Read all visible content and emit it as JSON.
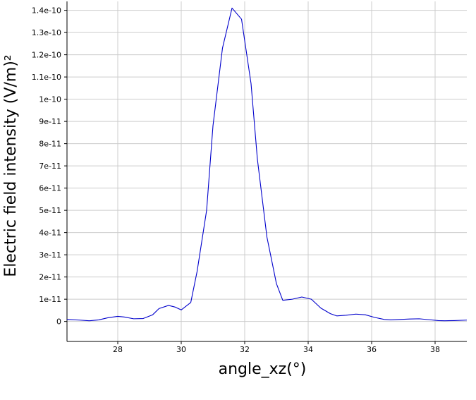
{
  "chart_data": {
    "type": "line",
    "title": "",
    "xlabel": "angle_xz(°)",
    "ylabel": "Electric field intensity (V/m)²",
    "xlim": [
      26.4,
      39.0
    ],
    "ylim": [
      -9e-12,
      1.44e-10
    ],
    "x_ticks": [
      28,
      30,
      32,
      34,
      36,
      38
    ],
    "x_tick_labels": [
      "28",
      "30",
      "32",
      "34",
      "36",
      "38"
    ],
    "y_ticks": [
      0,
      1e-11,
      2e-11,
      3e-11,
      4e-11,
      5e-11,
      6e-11,
      7e-11,
      8e-11,
      9e-11,
      1e-10,
      1.1e-10,
      1.2e-10,
      1.3e-10,
      1.4e-10
    ],
    "y_tick_labels": [
      "0",
      "1e-11",
      "2e-11",
      "3e-11",
      "4e-11",
      "5e-11",
      "6e-11",
      "7e-11",
      "8e-11",
      "9e-11",
      "1e-10",
      "1.1e-10",
      "1.2e-10",
      "1.3e-10",
      "1.4e-10"
    ],
    "grid": true,
    "series": [
      {
        "color": "#0000cc",
        "x": [
          26.4,
          26.8,
          27.1,
          27.4,
          27.7,
          28.0,
          28.2,
          28.5,
          28.8,
          29.1,
          29.3,
          29.6,
          29.8,
          30.0,
          30.3,
          30.5,
          30.8,
          31.0,
          31.3,
          31.6,
          31.9,
          32.2,
          32.4,
          32.7,
          33.0,
          33.2,
          33.5,
          33.8,
          34.1,
          34.4,
          34.7,
          34.9,
          35.2,
          35.5,
          35.8,
          36.1,
          36.4,
          36.6,
          36.9,
          37.2,
          37.5,
          37.8,
          38.1,
          38.3,
          38.6,
          39.0
        ],
        "y": [
          9e-13,
          6e-13,
          3e-13,
          7e-13,
          1.7e-12,
          2.3e-12,
          2e-12,
          1.2e-12,
          1.3e-12,
          3e-12,
          5.8e-12,
          7.2e-12,
          6.5e-12,
          5.2e-12,
          8.5e-12,
          2.25e-11,
          5e-11,
          8.8e-11,
          1.23e-10,
          1.41e-10,
          1.36e-10,
          1.07e-10,
          7.3e-11,
          3.8e-11,
          1.7e-11,
          9.5e-12,
          1e-11,
          1.1e-11,
          1e-11,
          6e-12,
          3.5e-12,
          2.5e-12,
          2.8e-12,
          3.3e-12,
          3e-12,
          1.8e-12,
          9e-13,
          7e-13,
          9e-13,
          1.1e-12,
          1.2e-12,
          8e-13,
          4e-13,
          3e-13,
          4e-13,
          6e-13
        ]
      }
    ]
  }
}
